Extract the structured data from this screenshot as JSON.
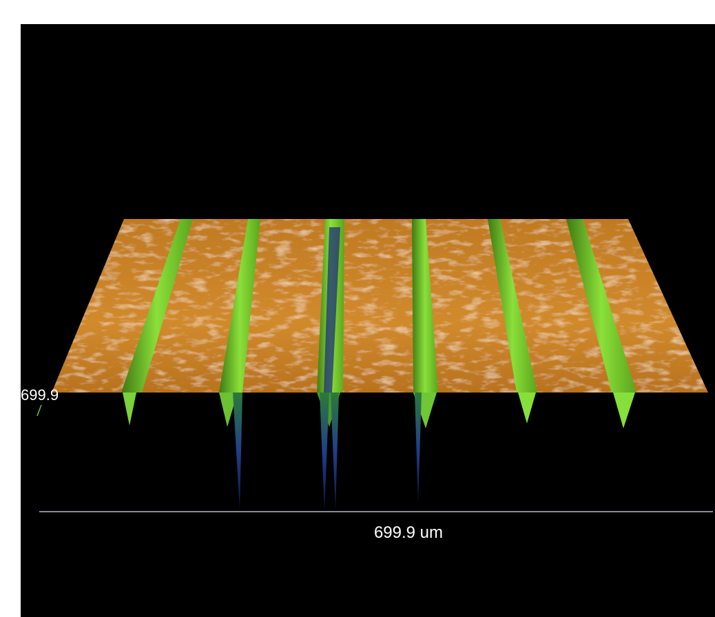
{
  "surface_view": {
    "height_label": "699.9",
    "scale_label": "699.9 um"
  }
}
